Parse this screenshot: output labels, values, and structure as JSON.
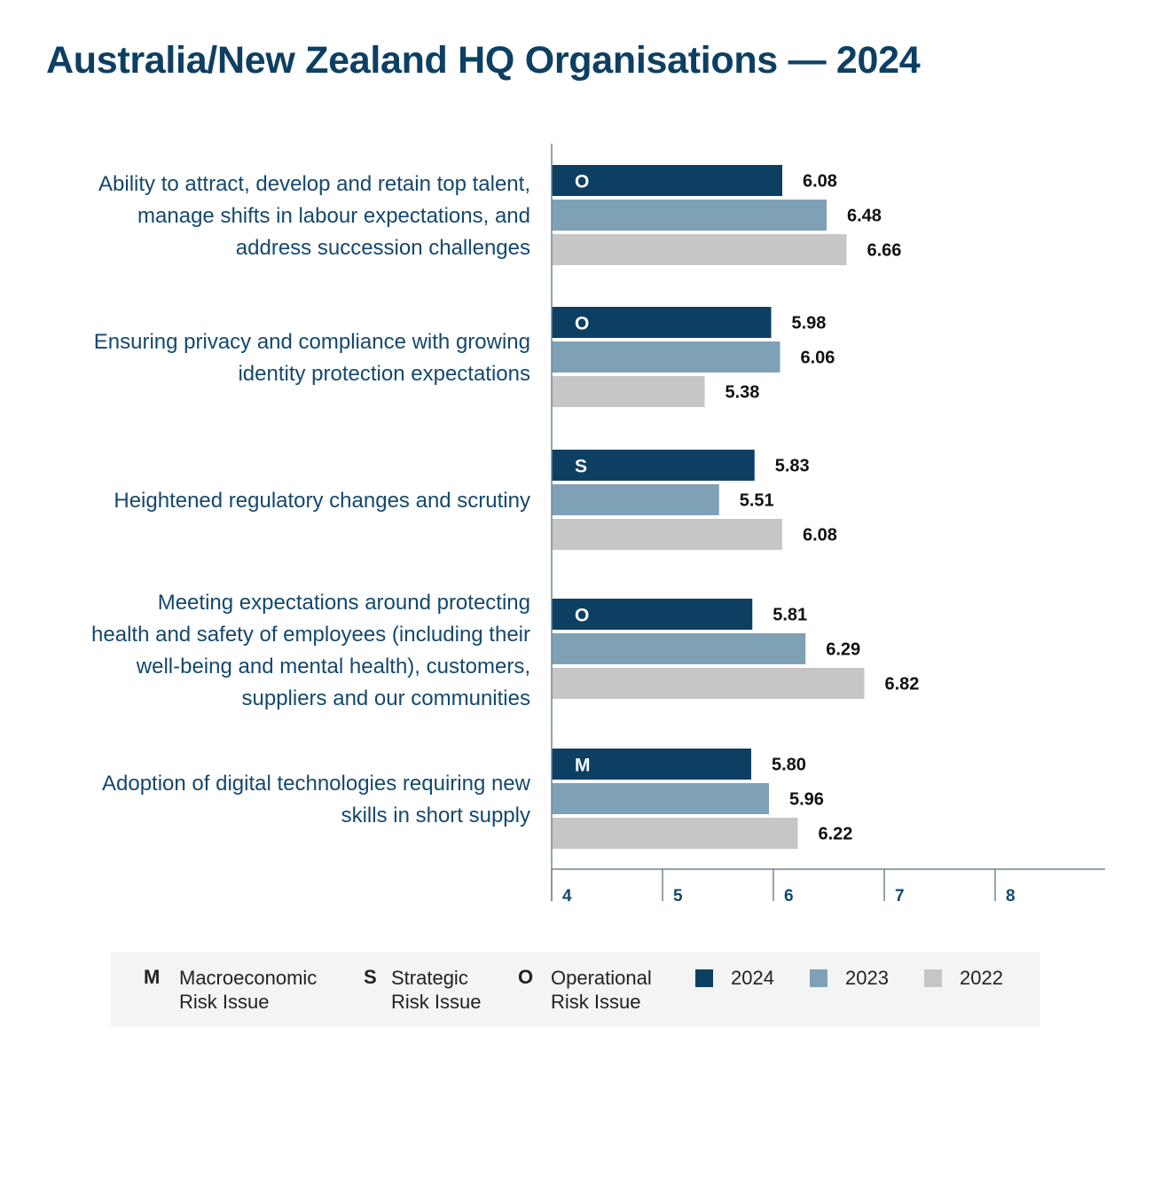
{
  "title": "Australia/New Zealand HQ Organisations — 2024",
  "chart_data": {
    "type": "bar",
    "orientation": "horizontal",
    "categories": [
      "Ability to attract, develop and retain top talent, manage shifts in labour expectations, and address succession challenges",
      "Ensuring privacy and compliance with growing identity protection expectations",
      "Heightened regulatory changes and scrutiny",
      "Meeting expectations around protecting health and safety of employees (including their well-being and mental health), customers, suppliers and our communities",
      "Adoption of digital technologies requiring new skills in short supply"
    ],
    "risk_type_letters": [
      "O",
      "O",
      "S",
      "O",
      "M"
    ],
    "series": [
      {
        "name": "2024",
        "color": "#0d3f63",
        "values": [
          6.08,
          5.98,
          5.83,
          5.81,
          5.8
        ],
        "labels": [
          "6.08",
          "5.98",
          "5.83",
          "5.81",
          "5.80"
        ]
      },
      {
        "name": "2023",
        "color": "#7fa1b6",
        "values": [
          6.48,
          6.06,
          5.51,
          6.29,
          5.96
        ],
        "labels": [
          "6.48",
          "6.06",
          "5.51",
          "6.29",
          "5.96"
        ]
      },
      {
        "name": "2022",
        "color": "#c6c6c6",
        "values": [
          6.66,
          5.38,
          6.08,
          6.82,
          6.22
        ],
        "labels": [
          "6.66",
          "5.38",
          "6.08",
          "6.82",
          "6.22"
        ]
      }
    ],
    "xlim": [
      4,
      9
    ],
    "xticks": [
      4,
      5,
      6,
      7,
      8
    ],
    "xtick_labels": [
      "4",
      "5",
      "6",
      "7",
      "8"
    ],
    "grid": false,
    "legend_placement": "bottom"
  },
  "legend": {
    "risk_types": [
      {
        "letter": "M",
        "line1": "Macroeconomic",
        "line2": "Risk Issue"
      },
      {
        "letter": "S",
        "line1": "Strategic",
        "line2": "Risk Issue"
      },
      {
        "letter": "O",
        "line1": "Operational",
        "line2": "Risk Issue"
      }
    ],
    "years": [
      {
        "label": "2024",
        "color": "#0d3f63"
      },
      {
        "label": "2023",
        "color": "#7fa1b6"
      },
      {
        "label": "2022",
        "color": "#c6c6c6"
      }
    ]
  },
  "category_lines": [
    [
      "Ability to attract, develop and retain top talent,",
      "manage shifts in labour expectations, and",
      "address succession challenges"
    ],
    [
      "Ensuring privacy and compliance with growing",
      "identity protection expectations"
    ],
    [
      "Heightened regulatory changes and scrutiny"
    ],
    [
      "Meeting expectations around protecting",
      "health and safety of employees (including their",
      "well-being and mental health), customers,",
      "suppliers and our communities"
    ],
    [
      "Adoption of digital technologies requiring new",
      "skills in short supply"
    ]
  ]
}
